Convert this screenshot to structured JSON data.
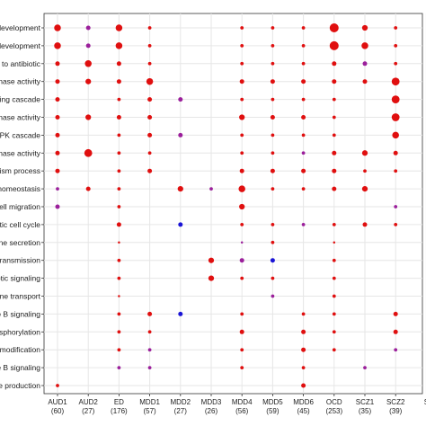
{
  "chart_data": {
    "type": "scatter",
    "title": "",
    "xlabel": "",
    "ylabel": "",
    "grid": true,
    "x_categories": [
      {
        "name": "AUD1",
        "count": "(60)"
      },
      {
        "name": "AUD2",
        "count": "(27)"
      },
      {
        "name": "ED",
        "count": "(176)"
      },
      {
        "name": "MDD1",
        "count": "(57)"
      },
      {
        "name": "MDD2",
        "count": "(27)"
      },
      {
        "name": "MDD3",
        "count": "(26)"
      },
      {
        "name": "MDD4",
        "count": "(56)"
      },
      {
        "name": "MDD5",
        "count": "(59)"
      },
      {
        "name": "MDD6",
        "count": "(45)"
      },
      {
        "name": "OCD",
        "count": "(253)"
      },
      {
        "name": "SCZ1",
        "count": "(35)"
      },
      {
        "name": "SCZ2",
        "count": "(39)"
      },
      {
        "name": "S",
        "count": ""
      }
    ],
    "y_categories": [
      "development",
      "development",
      "to antibiotic",
      "nase activity",
      "ling cascade",
      "nase activity",
      "APK cascade",
      "nase activity",
      "lism process",
      "homeostasis",
      "ell migration",
      "tic cell cycle",
      "one secretion",
      "transmission",
      "otic signaling",
      "ine transport",
      "e B signaling",
      "sphorylation",
      "modification",
      "e B signaling",
      "e production"
    ],
    "points": [
      {
        "x": "AUD1",
        "row": 0,
        "size": 3,
        "color": "red"
      },
      {
        "x": "AUD2",
        "row": 0,
        "size": 2,
        "color": "purple"
      },
      {
        "x": "ED",
        "row": 0,
        "size": 3,
        "color": "red"
      },
      {
        "x": "MDD1",
        "row": 0,
        "size": 1.5,
        "color": "red"
      },
      {
        "x": "MDD4",
        "row": 0,
        "size": 1.5,
        "color": "red"
      },
      {
        "x": "MDD5",
        "row": 0,
        "size": 1.5,
        "color": "red"
      },
      {
        "x": "MDD6",
        "row": 0,
        "size": 1.5,
        "color": "red"
      },
      {
        "x": "OCD",
        "row": 0,
        "size": 4,
        "color": "red"
      },
      {
        "x": "SCZ1",
        "row": 0,
        "size": 2.5,
        "color": "red"
      },
      {
        "x": "SCZ2",
        "row": 0,
        "size": 1.5,
        "color": "red"
      },
      {
        "x": "AUD1",
        "row": 1,
        "size": 3,
        "color": "red"
      },
      {
        "x": "AUD2",
        "row": 1,
        "size": 2,
        "color": "purple"
      },
      {
        "x": "ED",
        "row": 1,
        "size": 3,
        "color": "red"
      },
      {
        "x": "MDD1",
        "row": 1,
        "size": 1.5,
        "color": "red"
      },
      {
        "x": "MDD4",
        "row": 1,
        "size": 1.5,
        "color": "red"
      },
      {
        "x": "MDD5",
        "row": 1,
        "size": 1.5,
        "color": "red"
      },
      {
        "x": "MDD6",
        "row": 1,
        "size": 1.5,
        "color": "red"
      },
      {
        "x": "OCD",
        "row": 1,
        "size": 4,
        "color": "red"
      },
      {
        "x": "SCZ1",
        "row": 1,
        "size": 3,
        "color": "red"
      },
      {
        "x": "SCZ2",
        "row": 1,
        "size": 1.5,
        "color": "red"
      },
      {
        "x": "AUD1",
        "row": 2,
        "size": 2,
        "color": "red"
      },
      {
        "x": "AUD2",
        "row": 2,
        "size": 3,
        "color": "red"
      },
      {
        "x": "ED",
        "row": 2,
        "size": 2,
        "color": "red"
      },
      {
        "x": "MDD1",
        "row": 2,
        "size": 1.5,
        "color": "red"
      },
      {
        "x": "MDD4",
        "row": 2,
        "size": 1.5,
        "color": "red"
      },
      {
        "x": "MDD5",
        "row": 2,
        "size": 1.5,
        "color": "red"
      },
      {
        "x": "MDD6",
        "row": 2,
        "size": 1.5,
        "color": "red"
      },
      {
        "x": "OCD",
        "row": 2,
        "size": 2,
        "color": "red"
      },
      {
        "x": "SCZ1",
        "row": 2,
        "size": 2,
        "color": "purple"
      },
      {
        "x": "SCZ2",
        "row": 2,
        "size": 1.5,
        "color": "red"
      },
      {
        "x": "AUD1",
        "row": 3,
        "size": 2,
        "color": "red"
      },
      {
        "x": "AUD2",
        "row": 3,
        "size": 2.5,
        "color": "red"
      },
      {
        "x": "ED",
        "row": 3,
        "size": 2,
        "color": "red"
      },
      {
        "x": "MDD1",
        "row": 3,
        "size": 3,
        "color": "red"
      },
      {
        "x": "MDD4",
        "row": 3,
        "size": 2,
        "color": "red"
      },
      {
        "x": "MDD5",
        "row": 3,
        "size": 2,
        "color": "red"
      },
      {
        "x": "MDD6",
        "row": 3,
        "size": 2,
        "color": "red"
      },
      {
        "x": "OCD",
        "row": 3,
        "size": 2,
        "color": "red"
      },
      {
        "x": "SCZ1",
        "row": 3,
        "size": 2,
        "color": "red"
      },
      {
        "x": "SCZ2",
        "row": 3,
        "size": 3.5,
        "color": "red"
      },
      {
        "x": "AUD1",
        "row": 4,
        "size": 2,
        "color": "red"
      },
      {
        "x": "ED",
        "row": 4,
        "size": 1.5,
        "color": "red"
      },
      {
        "x": "MDD1",
        "row": 4,
        "size": 2,
        "color": "red"
      },
      {
        "x": "MDD2",
        "row": 4,
        "size": 2,
        "color": "purple"
      },
      {
        "x": "MDD4",
        "row": 4,
        "size": 1.5,
        "color": "red"
      },
      {
        "x": "MDD5",
        "row": 4,
        "size": 1.5,
        "color": "red"
      },
      {
        "x": "MDD6",
        "row": 4,
        "size": 1.5,
        "color": "red"
      },
      {
        "x": "OCD",
        "row": 4,
        "size": 1.5,
        "color": "red"
      },
      {
        "x": "SCZ2",
        "row": 4,
        "size": 3.5,
        "color": "red"
      },
      {
        "x": "AUD1",
        "row": 5,
        "size": 2,
        "color": "red"
      },
      {
        "x": "AUD2",
        "row": 5,
        "size": 2.5,
        "color": "red"
      },
      {
        "x": "ED",
        "row": 5,
        "size": 2,
        "color": "red"
      },
      {
        "x": "MDD1",
        "row": 5,
        "size": 2,
        "color": "red"
      },
      {
        "x": "MDD4",
        "row": 5,
        "size": 2.5,
        "color": "red"
      },
      {
        "x": "MDD5",
        "row": 5,
        "size": 2,
        "color": "red"
      },
      {
        "x": "MDD6",
        "row": 5,
        "size": 2,
        "color": "red"
      },
      {
        "x": "OCD",
        "row": 5,
        "size": 1.5,
        "color": "red"
      },
      {
        "x": "SCZ2",
        "row": 5,
        "size": 3.5,
        "color": "red"
      },
      {
        "x": "AUD1",
        "row": 6,
        "size": 2,
        "color": "red"
      },
      {
        "x": "ED",
        "row": 6,
        "size": 1.5,
        "color": "red"
      },
      {
        "x": "MDD1",
        "row": 6,
        "size": 2,
        "color": "red"
      },
      {
        "x": "MDD2",
        "row": 6,
        "size": 2,
        "color": "purple"
      },
      {
        "x": "MDD4",
        "row": 6,
        "size": 1.5,
        "color": "red"
      },
      {
        "x": "MDD5",
        "row": 6,
        "size": 1.5,
        "color": "red"
      },
      {
        "x": "MDD6",
        "row": 6,
        "size": 1.5,
        "color": "red"
      },
      {
        "x": "OCD",
        "row": 6,
        "size": 1.5,
        "color": "red"
      },
      {
        "x": "SCZ2",
        "row": 6,
        "size": 3,
        "color": "red"
      },
      {
        "x": "AUD1",
        "row": 7,
        "size": 2,
        "color": "red"
      },
      {
        "x": "AUD2",
        "row": 7,
        "size": 3.5,
        "color": "red"
      },
      {
        "x": "ED",
        "row": 7,
        "size": 1.5,
        "color": "red"
      },
      {
        "x": "MDD1",
        "row": 7,
        "size": 1.5,
        "color": "red"
      },
      {
        "x": "MDD4",
        "row": 7,
        "size": 1.5,
        "color": "red"
      },
      {
        "x": "MDD5",
        "row": 7,
        "size": 1.5,
        "color": "red"
      },
      {
        "x": "MDD6",
        "row": 7,
        "size": 1.5,
        "color": "purple"
      },
      {
        "x": "OCD",
        "row": 7,
        "size": 2,
        "color": "red"
      },
      {
        "x": "SCZ1",
        "row": 7,
        "size": 2.5,
        "color": "red"
      },
      {
        "x": "SCZ2",
        "row": 7,
        "size": 2,
        "color": "red"
      },
      {
        "x": "AUD1",
        "row": 8,
        "size": 2,
        "color": "red"
      },
      {
        "x": "ED",
        "row": 8,
        "size": 1.5,
        "color": "red"
      },
      {
        "x": "MDD1",
        "row": 8,
        "size": 2,
        "color": "red"
      },
      {
        "x": "MDD4",
        "row": 8,
        "size": 2,
        "color": "red"
      },
      {
        "x": "MDD5",
        "row": 8,
        "size": 2,
        "color": "red"
      },
      {
        "x": "MDD6",
        "row": 8,
        "size": 2,
        "color": "red"
      },
      {
        "x": "OCD",
        "row": 8,
        "size": 2,
        "color": "red"
      },
      {
        "x": "SCZ1",
        "row": 8,
        "size": 1.5,
        "color": "red"
      },
      {
        "x": "SCZ2",
        "row": 8,
        "size": 1.5,
        "color": "red"
      },
      {
        "x": "AUD1",
        "row": 9,
        "size": 1.5,
        "color": "purple"
      },
      {
        "x": "AUD2",
        "row": 9,
        "size": 2,
        "color": "red"
      },
      {
        "x": "ED",
        "row": 9,
        "size": 1.5,
        "color": "red"
      },
      {
        "x": "MDD2",
        "row": 9,
        "size": 2.5,
        "color": "red"
      },
      {
        "x": "MDD3",
        "row": 9,
        "size": 1.5,
        "color": "purple"
      },
      {
        "x": "MDD4",
        "row": 9,
        "size": 3,
        "color": "red"
      },
      {
        "x": "MDD5",
        "row": 9,
        "size": 1.5,
        "color": "red"
      },
      {
        "x": "MDD6",
        "row": 9,
        "size": 1.5,
        "color": "red"
      },
      {
        "x": "OCD",
        "row": 9,
        "size": 2,
        "color": "red"
      },
      {
        "x": "SCZ1",
        "row": 9,
        "size": 2.5,
        "color": "red"
      },
      {
        "x": "AUD1",
        "row": 10,
        "size": 2,
        "color": "purple"
      },
      {
        "x": "ED",
        "row": 10,
        "size": 1.5,
        "color": "red"
      },
      {
        "x": "MDD4",
        "row": 10,
        "size": 2.5,
        "color": "red"
      },
      {
        "x": "SCZ2",
        "row": 10,
        "size": 1.5,
        "color": "purple"
      },
      {
        "x": "ED",
        "row": 11,
        "size": 2,
        "color": "red"
      },
      {
        "x": "MDD2",
        "row": 11,
        "size": 2,
        "color": "blue"
      },
      {
        "x": "MDD4",
        "row": 11,
        "size": 1.5,
        "color": "red"
      },
      {
        "x": "MDD5",
        "row": 11,
        "size": 1.5,
        "color": "red"
      },
      {
        "x": "MDD6",
        "row": 11,
        "size": 1.5,
        "color": "purple"
      },
      {
        "x": "OCD",
        "row": 11,
        "size": 1.5,
        "color": "red"
      },
      {
        "x": "SCZ1",
        "row": 11,
        "size": 2,
        "color": "red"
      },
      {
        "x": "SCZ2",
        "row": 11,
        "size": 1.5,
        "color": "red"
      },
      {
        "x": "ED",
        "row": 12,
        "size": 1,
        "color": "red"
      },
      {
        "x": "MDD4",
        "row": 12,
        "size": 1,
        "color": "purple"
      },
      {
        "x": "MDD5",
        "row": 12,
        "size": 1.5,
        "color": "red"
      },
      {
        "x": "OCD",
        "row": 12,
        "size": 1,
        "color": "red"
      },
      {
        "x": "ED",
        "row": 13,
        "size": 1.5,
        "color": "red"
      },
      {
        "x": "MDD3",
        "row": 13,
        "size": 2.5,
        "color": "red"
      },
      {
        "x": "MDD4",
        "row": 13,
        "size": 2,
        "color": "purple"
      },
      {
        "x": "MDD5",
        "row": 13,
        "size": 2,
        "color": "blue"
      },
      {
        "x": "OCD",
        "row": 13,
        "size": 1.5,
        "color": "red"
      },
      {
        "x": "ED",
        "row": 14,
        "size": 1.5,
        "color": "red"
      },
      {
        "x": "MDD3",
        "row": 14,
        "size": 2.5,
        "color": "red"
      },
      {
        "x": "MDD4",
        "row": 14,
        "size": 1.5,
        "color": "red"
      },
      {
        "x": "MDD5",
        "row": 14,
        "size": 1.5,
        "color": "red"
      },
      {
        "x": "OCD",
        "row": 14,
        "size": 1.5,
        "color": "red"
      },
      {
        "x": "ED",
        "row": 15,
        "size": 1,
        "color": "red"
      },
      {
        "x": "MDD5",
        "row": 15,
        "size": 1.5,
        "color": "purple"
      },
      {
        "x": "OCD",
        "row": 15,
        "size": 1.5,
        "color": "red"
      },
      {
        "x": "ED",
        "row": 16,
        "size": 1.5,
        "color": "red"
      },
      {
        "x": "MDD1",
        "row": 16,
        "size": 2,
        "color": "red"
      },
      {
        "x": "MDD2",
        "row": 16,
        "size": 2,
        "color": "blue"
      },
      {
        "x": "MDD4",
        "row": 16,
        "size": 1.5,
        "color": "red"
      },
      {
        "x": "MDD6",
        "row": 16,
        "size": 1.5,
        "color": "red"
      },
      {
        "x": "OCD",
        "row": 16,
        "size": 1.5,
        "color": "red"
      },
      {
        "x": "SCZ2",
        "row": 16,
        "size": 2,
        "color": "red"
      },
      {
        "x": "ED",
        "row": 17,
        "size": 1.5,
        "color": "red"
      },
      {
        "x": "MDD1",
        "row": 17,
        "size": 1.5,
        "color": "red"
      },
      {
        "x": "MDD4",
        "row": 17,
        "size": 2,
        "color": "red"
      },
      {
        "x": "MDD6",
        "row": 17,
        "size": 2,
        "color": "red"
      },
      {
        "x": "OCD",
        "row": 17,
        "size": 1.5,
        "color": "red"
      },
      {
        "x": "SCZ2",
        "row": 17,
        "size": 2,
        "color": "red"
      },
      {
        "x": "ED",
        "row": 18,
        "size": 1.5,
        "color": "red"
      },
      {
        "x": "MDD1",
        "row": 18,
        "size": 1.5,
        "color": "purple"
      },
      {
        "x": "MDD4",
        "row": 18,
        "size": 1.5,
        "color": "red"
      },
      {
        "x": "MDD6",
        "row": 18,
        "size": 2,
        "color": "red"
      },
      {
        "x": "OCD",
        "row": 18,
        "size": 1.5,
        "color": "red"
      },
      {
        "x": "SCZ2",
        "row": 18,
        "size": 1.5,
        "color": "purple"
      },
      {
        "x": "ED",
        "row": 19,
        "size": 1.5,
        "color": "purple"
      },
      {
        "x": "MDD1",
        "row": 19,
        "size": 1.5,
        "color": "purple"
      },
      {
        "x": "MDD4",
        "row": 19,
        "size": 1.5,
        "color": "red"
      },
      {
        "x": "MDD6",
        "row": 19,
        "size": 1.5,
        "color": "red"
      },
      {
        "x": "SCZ1",
        "row": 19,
        "size": 1.5,
        "color": "purple"
      },
      {
        "x": "AUD1",
        "row": 20,
        "size": 1.5,
        "color": "red"
      },
      {
        "x": "MDD6",
        "row": 20,
        "size": 2,
        "color": "red"
      }
    ],
    "colors": {
      "red": "#e00f0f",
      "purple": "#9b1f9b",
      "blue": "#1a14d6"
    }
  }
}
